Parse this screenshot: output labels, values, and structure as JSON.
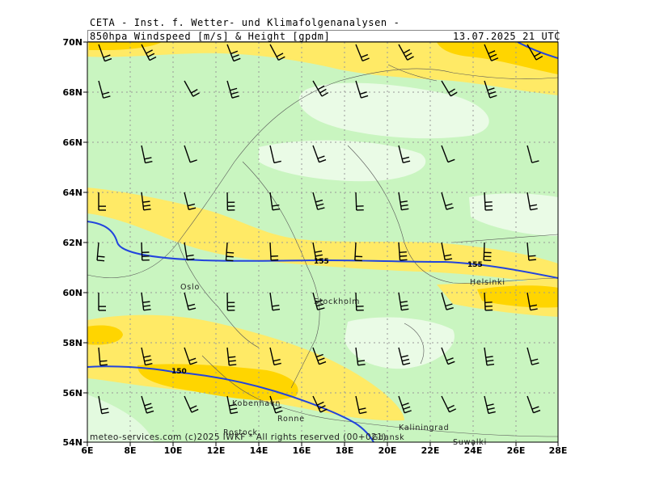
{
  "header": {
    "title": "CETA - Inst. f. Wetter- und Klimafolgenanalysen -",
    "subtitle": "850hpa Windspeed [m/s] & Height [gpdm]",
    "timestamp": "13.07.2025 21 UTC"
  },
  "footer": {
    "credit": "meteo-services.com (c)2025 IWKF * All rights reserved (00+021)"
  },
  "axes": {
    "lon_labels": [
      "6E",
      "8E",
      "10E",
      "12E",
      "14E",
      "16E",
      "18E",
      "20E",
      "22E",
      "24E",
      "26E",
      "28E"
    ],
    "lat_labels": [
      "70N",
      "68N",
      "66N",
      "64N",
      "62N",
      "60N",
      "58N",
      "56N",
      "54N"
    ]
  },
  "cities": [
    {
      "name": "Oslo"
    },
    {
      "name": "Stockholm"
    },
    {
      "name": "Helsinki"
    },
    {
      "name": "Kobenhavn"
    },
    {
      "name": "Ronne"
    },
    {
      "name": "Rostock"
    },
    {
      "name": "Kaliningrad"
    },
    {
      "name": "Gdansk"
    },
    {
      "name": "Suwalki"
    }
  ],
  "contours": [
    {
      "label": "155"
    },
    {
      "label": "155"
    },
    {
      "label": "150"
    }
  ],
  "colors": {
    "speed_lowest": "#eafbe6",
    "speed_low": "#c9f5c0",
    "speed_mid": "#ffea66",
    "speed_high": "#ffd500",
    "contour": "#2244dd",
    "grid": "#999999"
  }
}
